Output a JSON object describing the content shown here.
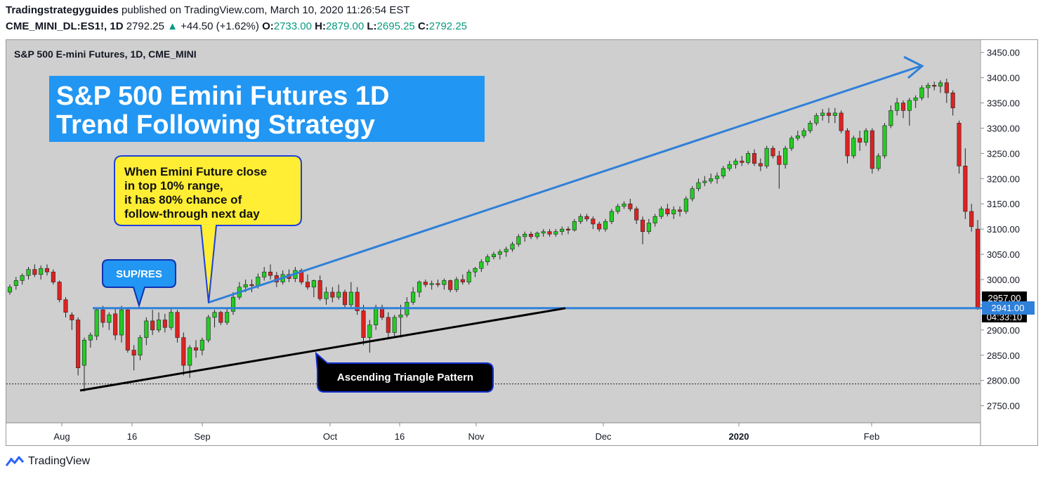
{
  "header": {
    "publisher": "Tradingstrategyguides",
    "published_text": "published on TradingView.com, March 10, 2020 11:26:54 EST",
    "symbol": "CME_MINI_DL:ES1!, 1D",
    "last": "2792.25",
    "change": "+44.50 (+1.62%)",
    "o_label": "O:",
    "o_value": "2733.00",
    "h_label": "H:",
    "h_value": "2879.00",
    "l_label": "L:",
    "l_value": "2695.25",
    "c_label": "C:",
    "c_value": "2792.25"
  },
  "chart": {
    "pane_title": "S&P 500 E-mini Futures, 1D, CME_MINI",
    "banner_line1": "S&P 500 Emini Futures 1D",
    "banner_line2": "Trend Following Strategy",
    "callout_lines": [
      "When Emini Future close",
      "in top 10% range,",
      "it has 80% chance of",
      "follow-through next day"
    ],
    "sup_res_label": "SUP/RES",
    "triangle_label": "Ascending Triangle Pattern",
    "price_tag_2957": "2957.00",
    "price_tag_2941": "2941.00",
    "countdown": "04:33:10"
  },
  "chart_data": {
    "type": "candlestick",
    "y_axis_ticks": [
      "3450.00",
      "3400.00",
      "3350.00",
      "3300.00",
      "3250.00",
      "3200.00",
      "3150.00",
      "3100.00",
      "3050.00",
      "3000.00",
      "2950.00",
      "2900.00",
      "2850.00",
      "2800.00",
      "2750.00"
    ],
    "x_axis_labels": [
      "Aug",
      "16",
      "Sep",
      "Oct",
      "16",
      "Nov",
      "Dec",
      "2020",
      "Feb"
    ],
    "ylim": [
      2700,
      3480
    ],
    "support_resistance_level": 2941,
    "colors": {
      "up": "#22cc22",
      "down": "#dd2222",
      "level": "#2f80d8",
      "trend": "#2f80d8",
      "triangle": "#000000",
      "banner": "#2196f3",
      "callout": "#ffee33"
    },
    "trend_line": {
      "from": 2950,
      "to": 3420
    },
    "triangle_support": {
      "from": 2778,
      "to": 2941
    },
    "candles": [
      [
        2975,
        2990,
        2970,
        2985
      ],
      [
        2988,
        3005,
        2980,
        2998
      ],
      [
        2998,
        3012,
        2990,
        3008
      ],
      [
        3008,
        3025,
        3000,
        3020
      ],
      [
        3020,
        3030,
        3005,
        3010
      ],
      [
        3010,
        3028,
        3000,
        3022
      ],
      [
        3022,
        3030,
        3008,
        3015
      ],
      [
        3015,
        3020,
        2990,
        2995
      ],
      [
        2995,
        2998,
        2955,
        2960
      ],
      [
        2960,
        2965,
        2925,
        2935
      ],
      [
        2930,
        2935,
        2900,
        2920
      ],
      [
        2920,
        2925,
        2810,
        2825
      ],
      [
        2830,
        2885,
        2778,
        2880
      ],
      [
        2880,
        2895,
        2865,
        2890
      ],
      [
        2888,
        2945,
        2880,
        2940
      ],
      [
        2940,
        2948,
        2905,
        2915
      ],
      [
        2915,
        2935,
        2900,
        2930
      ],
      [
        2932,
        2945,
        2880,
        2890
      ],
      [
        2890,
        2948,
        2875,
        2940
      ],
      [
        2940,
        2945,
        2855,
        2860
      ],
      [
        2860,
        2870,
        2820,
        2850
      ],
      [
        2850,
        2890,
        2840,
        2885
      ],
      [
        2885,
        2925,
        2870,
        2918
      ],
      [
        2918,
        2940,
        2890,
        2900
      ],
      [
        2900,
        2935,
        2895,
        2920
      ],
      [
        2920,
        2932,
        2895,
        2905
      ],
      [
        2905,
        2945,
        2900,
        2935
      ],
      [
        2935,
        2940,
        2875,
        2885
      ],
      [
        2885,
        2895,
        2810,
        2830
      ],
      [
        2830,
        2870,
        2805,
        2865
      ],
      [
        2865,
        2880,
        2845,
        2860
      ],
      [
        2860,
        2885,
        2850,
        2880
      ],
      [
        2880,
        2930,
        2875,
        2925
      ],
      [
        2925,
        2940,
        2905,
        2935
      ],
      [
        2935,
        2938,
        2910,
        2915
      ],
      [
        2915,
        2945,
        2910,
        2935
      ],
      [
        2937,
        2975,
        2930,
        2965
      ],
      [
        2965,
        2995,
        2960,
        2985
      ],
      [
        2985,
        3000,
        2975,
        2990
      ],
      [
        2990,
        3000,
        2975,
        2988
      ],
      [
        2988,
        3012,
        2982,
        3005
      ],
      [
        3005,
        3025,
        2998,
        3015
      ],
      [
        3015,
        3030,
        3000,
        3008
      ],
      [
        3008,
        3015,
        2985,
        2995
      ],
      [
        2995,
        3018,
        2990,
        3010
      ],
      [
        3010,
        3020,
        2995,
        3002
      ],
      [
        3002,
        3025,
        2995,
        3018
      ],
      [
        3018,
        3022,
        2990,
        2995
      ],
      [
        2995,
        3010,
        2980,
        2985
      ],
      [
        2985,
        3000,
        2965,
        2998
      ],
      [
        2998,
        3008,
        2958,
        2962
      ],
      [
        2962,
        2985,
        2950,
        2975
      ],
      [
        2975,
        2985,
        2955,
        2965
      ],
      [
        2965,
        2990,
        2960,
        2975
      ],
      [
        2975,
        2980,
        2945,
        2950
      ],
      [
        2950,
        2995,
        2945,
        2975
      ],
      [
        2975,
        2985,
        2930,
        2938
      ],
      [
        2938,
        2950,
        2870,
        2885
      ],
      [
        2885,
        2920,
        2855,
        2910
      ],
      [
        2910,
        2950,
        2900,
        2945
      ],
      [
        2945,
        2950,
        2920,
        2925
      ],
      [
        2925,
        2935,
        2885,
        2895
      ],
      [
        2895,
        2930,
        2888,
        2925
      ],
      [
        2925,
        2950,
        2885,
        2930
      ],
      [
        2930,
        2965,
        2925,
        2955
      ],
      [
        2955,
        2985,
        2950,
        2975
      ],
      [
        2975,
        2998,
        2965,
        2995
      ],
      [
        2995,
        3000,
        2985,
        2990
      ],
      [
        2990,
        2998,
        2980,
        2992
      ],
      [
        2992,
        3000,
        2985,
        2990
      ],
      [
        2990,
        3002,
        2980,
        2998
      ],
      [
        2998,
        3000,
        2975,
        2980
      ],
      [
        2980,
        3005,
        2975,
        3000
      ],
      [
        3000,
        3010,
        2990,
        2995
      ],
      [
        2995,
        3020,
        2990,
        3015
      ],
      [
        3015,
        3025,
        3005,
        3022
      ],
      [
        3022,
        3040,
        3015,
        3035
      ],
      [
        3035,
        3050,
        3028,
        3045
      ],
      [
        3045,
        3055,
        3040,
        3050
      ],
      [
        3050,
        3060,
        3040,
        3055
      ],
      [
        3055,
        3065,
        3045,
        3060
      ],
      [
        3060,
        3075,
        3055,
        3070
      ],
      [
        3070,
        3090,
        3065,
        3085
      ],
      [
        3085,
        3095,
        3075,
        3090
      ],
      [
        3090,
        3095,
        3080,
        3085
      ],
      [
        3085,
        3095,
        3080,
        3092
      ],
      [
        3092,
        3100,
        3085,
        3095
      ],
      [
        3095,
        3100,
        3085,
        3090
      ],
      [
        3090,
        3100,
        3085,
        3095
      ],
      [
        3095,
        3105,
        3088,
        3100
      ],
      [
        3100,
        3105,
        3090,
        3098
      ],
      [
        3098,
        3120,
        3095,
        3115
      ],
      [
        3115,
        3130,
        3110,
        3125
      ],
      [
        3125,
        3130,
        3115,
        3120
      ],
      [
        3120,
        3125,
        3100,
        3110
      ],
      [
        3110,
        3115,
        3095,
        3100
      ],
      [
        3100,
        3120,
        3095,
        3115
      ],
      [
        3115,
        3140,
        3110,
        3135
      ],
      [
        3135,
        3150,
        3130,
        3145
      ],
      [
        3145,
        3155,
        3140,
        3150
      ],
      [
        3150,
        3160,
        3135,
        3140
      ],
      [
        3140,
        3145,
        3110,
        3118
      ],
      [
        3118,
        3125,
        3070,
        3095
      ],
      [
        3095,
        3120,
        3090,
        3112
      ],
      [
        3112,
        3130,
        3105,
        3125
      ],
      [
        3125,
        3145,
        3120,
        3140
      ],
      [
        3140,
        3150,
        3125,
        3130
      ],
      [
        3130,
        3145,
        3120,
        3138
      ],
      [
        3138,
        3145,
        3125,
        3135
      ],
      [
        3135,
        3165,
        3130,
        3160
      ],
      [
        3160,
        3185,
        3155,
        3180
      ],
      [
        3180,
        3200,
        3175,
        3192
      ],
      [
        3192,
        3205,
        3185,
        3195
      ],
      [
        3195,
        3210,
        3190,
        3200
      ],
      [
        3200,
        3212,
        3190,
        3205
      ],
      [
        3205,
        3225,
        3200,
        3220
      ],
      [
        3220,
        3235,
        3215,
        3228
      ],
      [
        3228,
        3240,
        3220,
        3235
      ],
      [
        3235,
        3245,
        3225,
        3232
      ],
      [
        3232,
        3255,
        3228,
        3250
      ],
      [
        3250,
        3258,
        3225,
        3230
      ],
      [
        3230,
        3240,
        3215,
        3225
      ],
      [
        3225,
        3265,
        3220,
        3260
      ],
      [
        3260,
        3265,
        3240,
        3245
      ],
      [
        3245,
        3255,
        3180,
        3228
      ],
      [
        3228,
        3265,
        3220,
        3260
      ],
      [
        3260,
        3285,
        3255,
        3280
      ],
      [
        3280,
        3295,
        3275,
        3285
      ],
      [
        3285,
        3300,
        3280,
        3295
      ],
      [
        3295,
        3315,
        3290,
        3310
      ],
      [
        3310,
        3330,
        3305,
        3325
      ],
      [
        3325,
        3338,
        3315,
        3330
      ],
      [
        3330,
        3340,
        3310,
        3325
      ],
      [
        3325,
        3340,
        3310,
        3330
      ],
      [
        3330,
        3335,
        3290,
        3295
      ],
      [
        3295,
        3300,
        3230,
        3245
      ],
      [
        3245,
        3285,
        3240,
        3280
      ],
      [
        3280,
        3295,
        3255,
        3272
      ],
      [
        3272,
        3300,
        3265,
        3295
      ],
      [
        3295,
        3300,
        3210,
        3220
      ],
      [
        3220,
        3250,
        3215,
        3245
      ],
      [
        3245,
        3310,
        3240,
        3305
      ],
      [
        3305,
        3345,
        3300,
        3335
      ],
      [
        3335,
        3360,
        3325,
        3350
      ],
      [
        3350,
        3355,
        3320,
        3335
      ],
      [
        3335,
        3360,
        3305,
        3355
      ],
      [
        3355,
        3365,
        3340,
        3360
      ],
      [
        3360,
        3385,
        3355,
        3380
      ],
      [
        3380,
        3390,
        3360,
        3385
      ],
      [
        3385,
        3392,
        3375,
        3383
      ],
      [
        3383,
        3395,
        3370,
        3390
      ],
      [
        3390,
        3398,
        3350,
        3370
      ],
      [
        3370,
        3375,
        3325,
        3340
      ],
      [
        3310,
        3315,
        3210,
        3225
      ],
      [
        3225,
        3260,
        3120,
        3135
      ],
      [
        3135,
        3150,
        3095,
        3105
      ],
      [
        3100,
        3118,
        2940,
        2945
      ]
    ]
  }
}
